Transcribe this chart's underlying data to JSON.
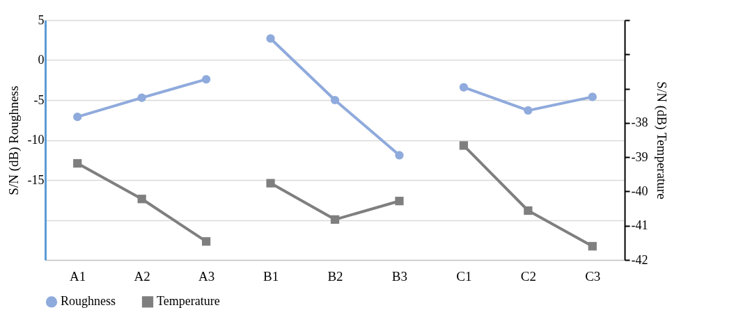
{
  "chart_data": {
    "type": "line",
    "categories": [
      "A1",
      "A2",
      "A3",
      "B1",
      "B2",
      "B3",
      "C1",
      "C2",
      "C3"
    ],
    "ylabel": "S/N (dB) Roughness",
    "y2label": "S/N (dB) Temperature",
    "ylim": [
      -25,
      5
    ],
    "yticks": [
      5,
      0,
      -5,
      -10,
      -15,
      {
        "value": -20,
        "label": null
      }
    ],
    "y2lim": [
      -42,
      -35
    ],
    "y2ticks": [
      {
        "value": -35,
        "label": null
      },
      {
        "value": -36,
        "label": null
      },
      {
        "value": -37,
        "label": null
      },
      -38,
      -39,
      -40,
      -41,
      -42
    ],
    "grid": "y",
    "legend": "bottom",
    "series": [
      {
        "name": "Roughness",
        "color": "#8faadc",
        "marker": "circle",
        "x": [
          "A1",
          "A2",
          "A3"
        ],
        "values": [
          -7.1,
          -4.7,
          -2.4
        ]
      },
      {
        "color": "#8faadc",
        "marker": "circle",
        "x": [
          "B1",
          "B2",
          "B3"
        ],
        "values": [
          2.7,
          -5.0,
          -11.9
        ]
      },
      {
        "color": "#8faadc",
        "marker": "circle",
        "x": [
          "C1",
          "C2",
          "C3"
        ],
        "values": [
          -3.4,
          -6.3,
          -4.6
        ]
      },
      {
        "name": "Temperature",
        "color": "#7f7f7f",
        "marker": "square",
        "axis": "y2",
        "x": [
          "A1",
          "A2",
          "A3"
        ],
        "values": [
          -39.18,
          -40.22,
          -41.46
        ]
      },
      {
        "color": "#7f7f7f",
        "marker": "square",
        "axis": "y2",
        "x": [
          "B1",
          "B2",
          "B3"
        ],
        "values": [
          -39.76,
          -40.82,
          -40.28
        ]
      },
      {
        "color": "#7f7f7f",
        "marker": "square",
        "axis": "y2",
        "x": [
          "C1",
          "C2",
          "C3"
        ],
        "values": [
          -38.66,
          -40.56,
          -41.6
        ]
      }
    ]
  }
}
